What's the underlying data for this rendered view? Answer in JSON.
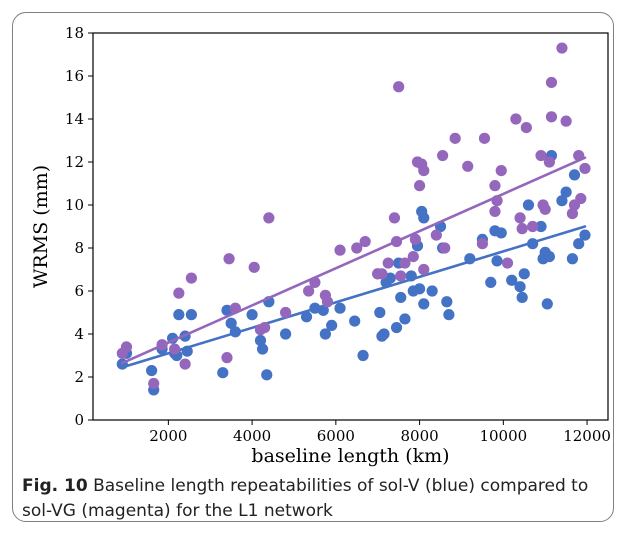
{
  "caption": {
    "label": "Fig. 10",
    "text": "Baseline length repeatabilities of sol-V (blue) compared to sol-VG (magenta) for the L1 network"
  },
  "chart_data": {
    "type": "scatter",
    "xlabel": "baseline length (km)",
    "ylabel": "WRMS (mm)",
    "xlim": [
      200,
      12500
    ],
    "ylim": [
      0,
      18
    ],
    "xticks": [
      2000,
      4000,
      6000,
      8000,
      10000,
      12000
    ],
    "yticks": [
      0,
      2,
      4,
      6,
      8,
      10,
      12,
      14,
      16,
      18
    ],
    "grid": false,
    "series": [
      {
        "color": "#4472c4",
        "points": [
          [
            900,
            2.6
          ],
          [
            1000,
            3.1
          ],
          [
            1600,
            2.3
          ],
          [
            1650,
            1.4
          ],
          [
            1850,
            3.3
          ],
          [
            2100,
            3.8
          ],
          [
            2150,
            3.1
          ],
          [
            2200,
            3.0
          ],
          [
            2250,
            4.9
          ],
          [
            2400,
            3.9
          ],
          [
            2450,
            3.2
          ],
          [
            2550,
            4.9
          ],
          [
            3300,
            2.2
          ],
          [
            3400,
            5.1
          ],
          [
            3500,
            4.5
          ],
          [
            3600,
            4.1
          ],
          [
            4000,
            4.9
          ],
          [
            4200,
            3.7
          ],
          [
            4250,
            3.3
          ],
          [
            4350,
            2.1
          ],
          [
            4400,
            5.5
          ],
          [
            4800,
            4.0
          ],
          [
            5300,
            4.8
          ],
          [
            5500,
            5.2
          ],
          [
            5700,
            5.1
          ],
          [
            5750,
            4.0
          ],
          [
            5900,
            4.4
          ],
          [
            6100,
            5.2
          ],
          [
            6450,
            4.6
          ],
          [
            6650,
            3.0
          ],
          [
            7000,
            6.8
          ],
          [
            7050,
            5.0
          ],
          [
            7100,
            3.9
          ],
          [
            7150,
            4.0
          ],
          [
            7200,
            6.4
          ],
          [
            7300,
            6.6
          ],
          [
            7450,
            4.3
          ],
          [
            7500,
            7.3
          ],
          [
            7550,
            5.7
          ],
          [
            7650,
            4.7
          ],
          [
            7800,
            6.7
          ],
          [
            7850,
            6.0
          ],
          [
            7950,
            8.1
          ],
          [
            8000,
            6.1
          ],
          [
            8050,
            9.7
          ],
          [
            8100,
            9.4
          ],
          [
            8100,
            5.4
          ],
          [
            8300,
            6.0
          ],
          [
            8500,
            9.0
          ],
          [
            8550,
            8.0
          ],
          [
            8650,
            5.5
          ],
          [
            8700,
            4.9
          ],
          [
            9200,
            7.5
          ],
          [
            9500,
            8.4
          ],
          [
            9700,
            6.4
          ],
          [
            9800,
            8.8
          ],
          [
            9850,
            7.4
          ],
          [
            9950,
            8.7
          ],
          [
            10200,
            6.5
          ],
          [
            10400,
            6.2
          ],
          [
            10450,
            5.7
          ],
          [
            10500,
            6.8
          ],
          [
            10600,
            10.0
          ],
          [
            10700,
            8.2
          ],
          [
            10900,
            9.0
          ],
          [
            10950,
            7.5
          ],
          [
            11000,
            7.8
          ],
          [
            11050,
            5.4
          ],
          [
            11100,
            7.6
          ],
          [
            11150,
            12.3
          ],
          [
            11400,
            10.2
          ],
          [
            11500,
            10.6
          ],
          [
            11650,
            7.5
          ],
          [
            11700,
            11.4
          ],
          [
            11800,
            8.2
          ],
          [
            11950,
            8.6
          ]
        ],
        "trend": [
          [
            900,
            2.45
          ],
          [
            11950,
            9.0
          ]
        ]
      },
      {
        "color": "#9467bd",
        "points": [
          [
            900,
            3.1
          ],
          [
            1000,
            3.4
          ],
          [
            1650,
            1.7
          ],
          [
            1850,
            3.5
          ],
          [
            2150,
            3.3
          ],
          [
            2250,
            5.9
          ],
          [
            2400,
            2.6
          ],
          [
            2550,
            6.6
          ],
          [
            3400,
            2.9
          ],
          [
            3450,
            7.5
          ],
          [
            3600,
            5.2
          ],
          [
            4050,
            7.1
          ],
          [
            4200,
            4.2
          ],
          [
            4300,
            4.3
          ],
          [
            4400,
            9.4
          ],
          [
            4800,
            5.0
          ],
          [
            5350,
            6.0
          ],
          [
            5500,
            6.4
          ],
          [
            5750,
            5.8
          ],
          [
            5800,
            5.5
          ],
          [
            6100,
            7.9
          ],
          [
            6500,
            8.0
          ],
          [
            6700,
            8.3
          ],
          [
            7000,
            6.8
          ],
          [
            7100,
            6.8
          ],
          [
            7250,
            7.3
          ],
          [
            7400,
            9.4
          ],
          [
            7450,
            8.3
          ],
          [
            7500,
            15.5
          ],
          [
            7550,
            6.7
          ],
          [
            7650,
            7.3
          ],
          [
            7850,
            7.6
          ],
          [
            7900,
            8.4
          ],
          [
            7950,
            12.0
          ],
          [
            8000,
            10.9
          ],
          [
            8050,
            11.9
          ],
          [
            8100,
            11.6
          ],
          [
            8100,
            7.0
          ],
          [
            8400,
            8.6
          ],
          [
            8550,
            12.3
          ],
          [
            8600,
            8.0
          ],
          [
            8850,
            13.1
          ],
          [
            9150,
            11.8
          ],
          [
            9500,
            8.2
          ],
          [
            9550,
            13.1
          ],
          [
            9800,
            9.7
          ],
          [
            9800,
            10.9
          ],
          [
            9850,
            10.2
          ],
          [
            9950,
            11.6
          ],
          [
            10100,
            7.3
          ],
          [
            10300,
            14.0
          ],
          [
            10400,
            9.4
          ],
          [
            10450,
            8.9
          ],
          [
            10550,
            13.6
          ],
          [
            10700,
            9.0
          ],
          [
            10900,
            12.3
          ],
          [
            10950,
            10.0
          ],
          [
            11000,
            9.8
          ],
          [
            11100,
            12.0
          ],
          [
            11150,
            15.7
          ],
          [
            11150,
            14.1
          ],
          [
            11400,
            17.3
          ],
          [
            11500,
            13.9
          ],
          [
            11650,
            9.6
          ],
          [
            11700,
            10.0
          ],
          [
            11800,
            12.3
          ],
          [
            11850,
            10.3
          ],
          [
            11950,
            11.7
          ]
        ],
        "trend": [
          [
            900,
            2.65
          ],
          [
            11950,
            12.2
          ]
        ]
      }
    ]
  }
}
